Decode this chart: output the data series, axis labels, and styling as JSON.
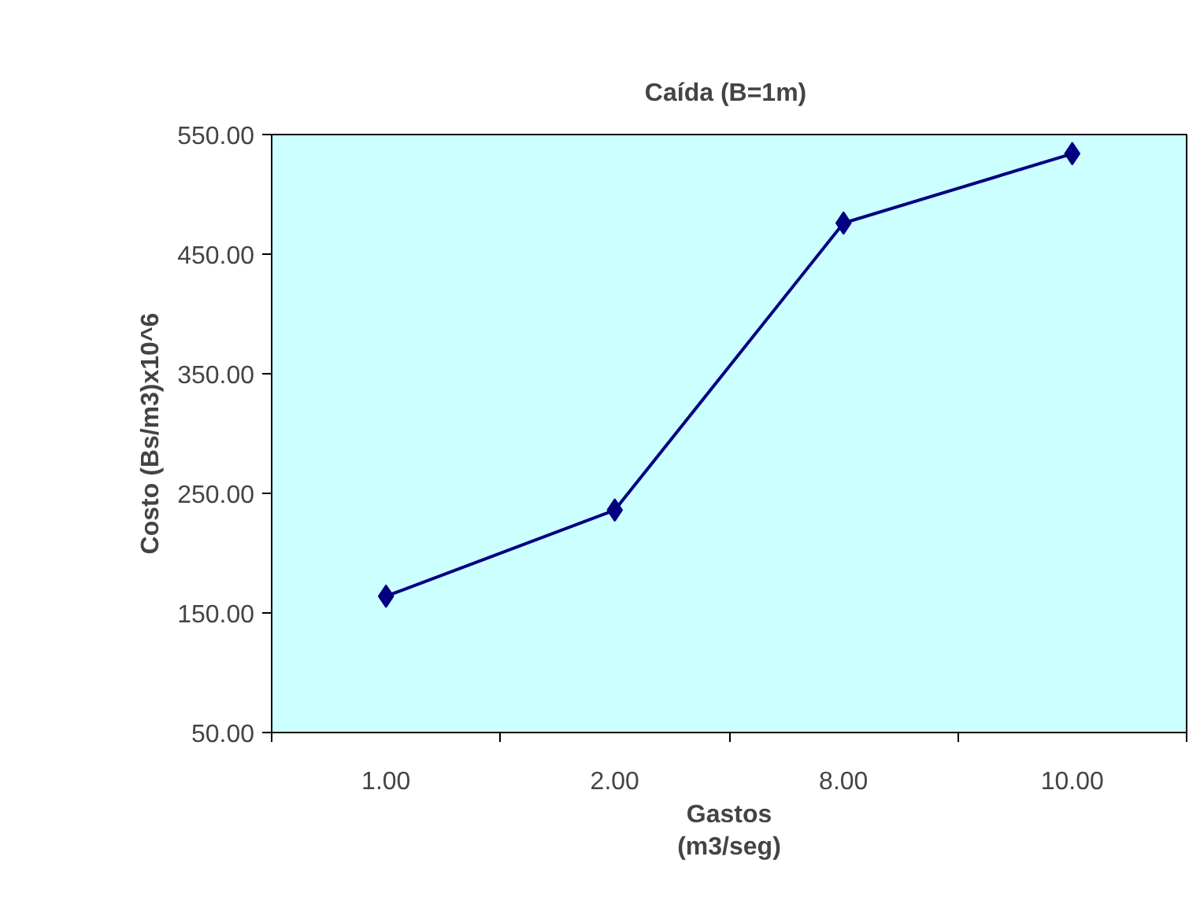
{
  "chart_data": {
    "type": "line",
    "title": "Caída  (B=1m)",
    "xlabel": "Gastos\n(m3/seg)",
    "ylabel": "Costo (Bs/m3)x10^6",
    "categories": [
      "1.00",
      "2.00",
      "8.00",
      "10.00"
    ],
    "series": [
      {
        "color": "#000080",
        "values": [
          164,
          236,
          476,
          534
        ]
      }
    ],
    "ylim": [
      50,
      550
    ],
    "yticks": [
      {
        "value": 50,
        "label": "50.00"
      },
      {
        "value": 150,
        "label": "150.00"
      },
      {
        "value": 250,
        "label": "250.00"
      },
      {
        "value": 350,
        "label": "350.00"
      },
      {
        "value": 450,
        "label": "450.00"
      },
      {
        "value": 550,
        "label": "550.00"
      }
    ],
    "grid": false,
    "marker": "diamond",
    "line_style": "solid"
  }
}
